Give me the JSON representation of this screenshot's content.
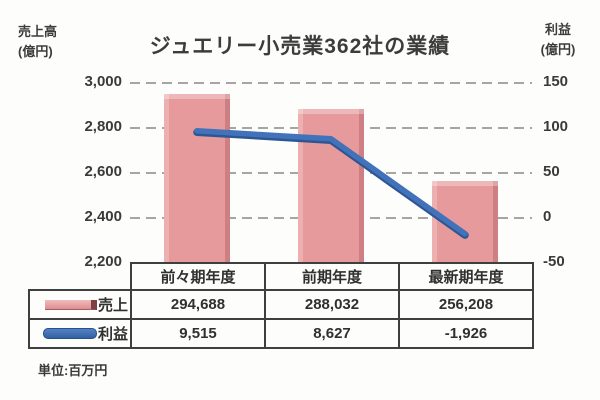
{
  "title": "ジュエリー小売業362社の業績",
  "note": "単位:百万円",
  "colors": {
    "bar": "#e79a9c",
    "bar_highlight": "#f2bcbc",
    "bar_edge": "#924248",
    "line": "#3a6cb5",
    "grid": "#8f8f8f",
    "text": "#3a3a3a",
    "table_border": "#3f3f3f",
    "background": "#fdfdfb"
  },
  "chart_data": {
    "type": "combo_bar_line",
    "title": "ジュエリー小売業362社の業績",
    "categories": [
      "前々期年度",
      "前期年度",
      "最新期年度"
    ],
    "series": [
      {
        "name": "売上",
        "type": "bar",
        "axis": "left",
        "values": [
          294688,
          288032,
          256208
        ],
        "display": [
          "294,688",
          "288,032",
          "256,208"
        ]
      },
      {
        "name": "利益",
        "type": "line",
        "axis": "right",
        "values": [
          9515,
          8627,
          -1926
        ],
        "display": [
          "9,515",
          "8,627",
          "-1,926"
        ]
      }
    ],
    "left_axis": {
      "title": "売上高",
      "unit": "(億円)",
      "min": 2200,
      "max": 3000,
      "tick_step": 200,
      "ticks": [
        "3,000",
        "2,800",
        "2,600",
        "2,400",
        "2,200"
      ]
    },
    "right_axis": {
      "title": "利益",
      "unit": "(億円)",
      "min": -50,
      "max": 150,
      "tick_step": 50,
      "ticks": [
        "150",
        "100",
        "50",
        "0",
        "-50"
      ]
    },
    "value_unit_note": "単位:百万円",
    "value_to_axis_divisor": 100,
    "grid": "horizontal-dashed",
    "legend_position": "table-left-column"
  }
}
